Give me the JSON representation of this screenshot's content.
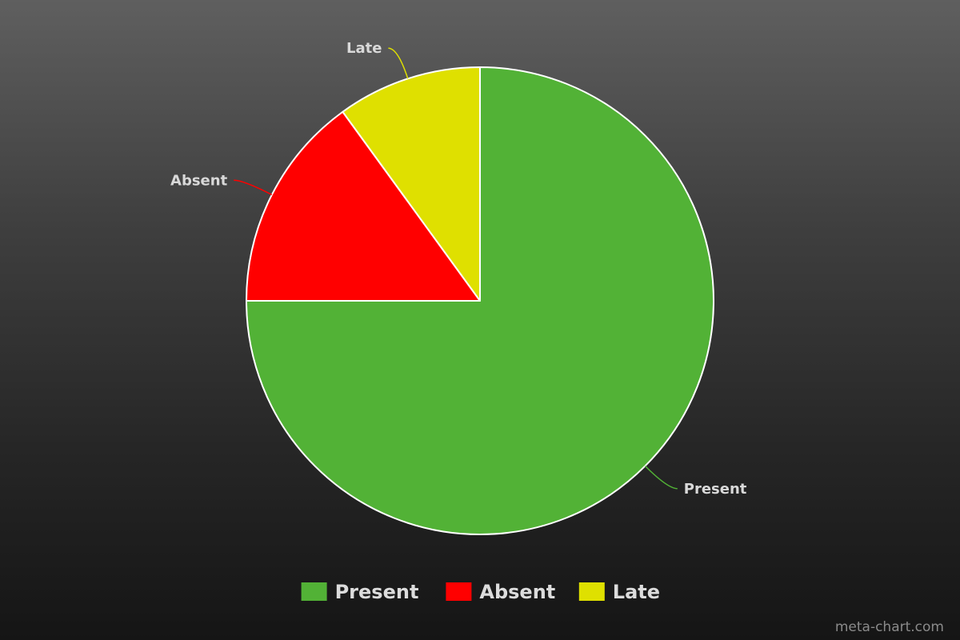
{
  "chart_data": {
    "type": "pie",
    "slices": [
      {
        "label": "Present",
        "value": 75,
        "color": "#52b236"
      },
      {
        "label": "Absent",
        "value": 15,
        "color": "#ff0000"
      },
      {
        "label": "Late",
        "value": 10,
        "color": "#dfe000"
      }
    ],
    "start_angle": "12 o'clock",
    "direction": "clockwise",
    "legend_position": "bottom-center",
    "slice_labels": "outside with leader lines"
  },
  "watermark": "meta-chart.com"
}
